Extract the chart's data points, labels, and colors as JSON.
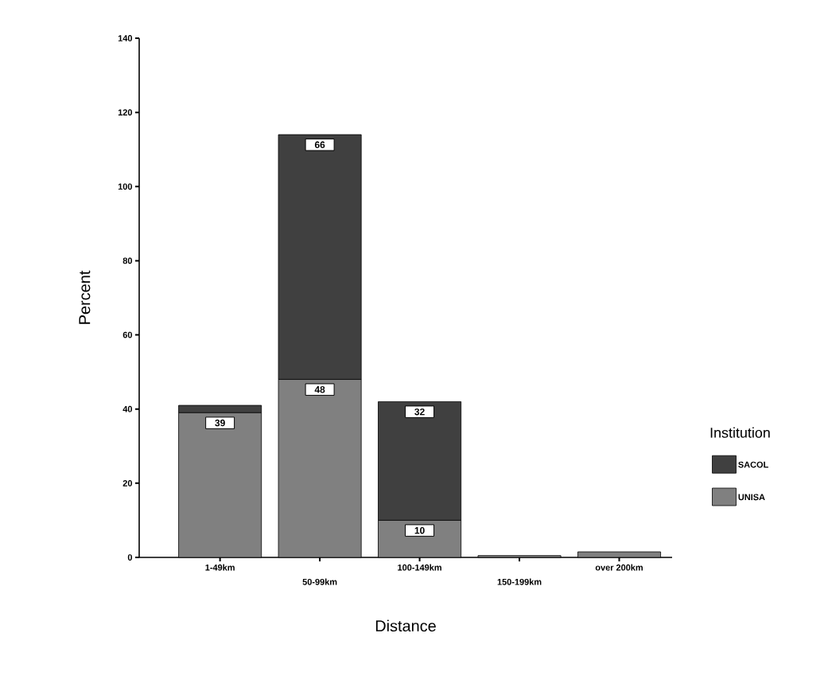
{
  "chart_data": {
    "type": "bar",
    "stacked": true,
    "xlabel": "Distance",
    "ylabel": "Percent",
    "legend_title": "Institution",
    "categories": [
      "1-49km",
      "50-99km",
      "100-149km",
      "150-199km",
      "over 200km"
    ],
    "series": [
      {
        "name": "UNISA",
        "color": "#808080",
        "values": [
          39,
          48,
          10,
          0.5,
          1.5
        ],
        "value_labels": [
          "39",
          "48",
          "10",
          null,
          null
        ]
      },
      {
        "name": "SACOL",
        "color": "#404040",
        "values": [
          2,
          66,
          32,
          0,
          0
        ],
        "value_labels": [
          null,
          "66",
          "32",
          null,
          null
        ]
      }
    ],
    "ylim": [
      0,
      140
    ],
    "yticks": [
      0,
      20,
      40,
      60,
      80,
      100,
      120,
      140
    ],
    "grid": false,
    "legend": "right"
  }
}
